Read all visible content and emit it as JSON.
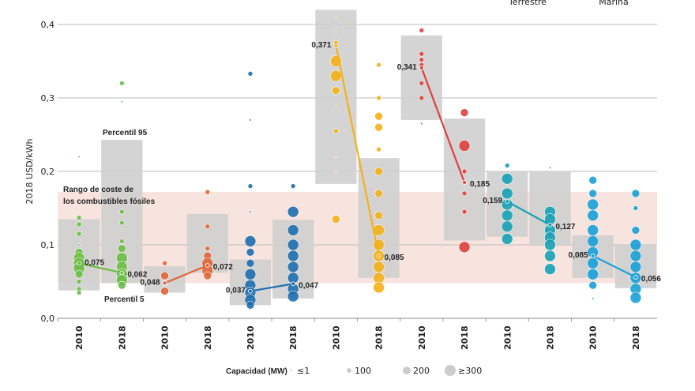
{
  "chart_data": {
    "type": "scatter",
    "ylabel": "2018 USD/kWh",
    "ylim": [
      0,
      0.4
    ],
    "yticks": [
      "0,0",
      "0,1",
      "0,2",
      "0,3",
      "0,4"
    ],
    "grid": true,
    "top_labels": [
      "Terrestre",
      "Marina"
    ],
    "fossil_range": {
      "label_lines": [
        "Rango de coste de",
        "los combustibles fósiles"
      ],
      "low": 0.048,
      "high": 0.172,
      "color": "#f8e4de"
    },
    "annotations": {
      "p95": "Percentil 95",
      "p5": "Percentil 5"
    },
    "legend": {
      "title": "Capacidad (MW)",
      "items": [
        "≤1",
        "100",
        "200",
        "≥300"
      ],
      "placement": "bottom"
    },
    "groups": [
      {
        "color": "#6cbd45",
        "years": [
          {
            "year": "2010",
            "avg": 0.075,
            "avg_label": "0,075",
            "p5": 0.038,
            "p95": 0.135,
            "points": [
              [
                0.22,
                1
              ],
              [
                0.137,
                100
              ],
              [
                0.128,
                100
              ],
              [
                0.115,
                100
              ],
              [
                0.1,
                1
              ],
              [
                0.09,
                200
              ],
              [
                0.082,
                300
              ],
              [
                0.075,
                300
              ],
              [
                0.068,
                300
              ],
              [
                0.06,
                200
              ],
              [
                0.05,
                100
              ],
              [
                0.04,
                100
              ],
              [
                0.035,
                100
              ]
            ]
          },
          {
            "year": "2018",
            "avg": 0.062,
            "avg_label": "0,062",
            "p5": 0.048,
            "p95": 0.243,
            "points": [
              [
                0.32,
                100
              ],
              [
                0.295,
                1
              ],
              [
                0.145,
                100
              ],
              [
                0.13,
                100
              ],
              [
                0.12,
                1
              ],
              [
                0.105,
                100
              ],
              [
                0.095,
                200
              ],
              [
                0.082,
                300
              ],
              [
                0.07,
                300
              ],
              [
                0.06,
                300
              ],
              [
                0.052,
                300
              ],
              [
                0.045,
                200
              ]
            ]
          }
        ]
      },
      {
        "color": "#e0663a",
        "years": [
          {
            "year": "2010",
            "avg": 0.048,
            "avg_label": "0,048",
            "p5": 0.035,
            "p95": 0.071,
            "points": [
              [
                0.075,
                100
              ],
              [
                0.058,
                200
              ],
              [
                0.048,
                100
              ],
              [
                0.037,
                200
              ]
            ]
          },
          {
            "year": "2018",
            "avg": 0.072,
            "avg_label": "0,072",
            "p5": 0.062,
            "p95": 0.142,
            "points": [
              [
                0.172,
                100
              ],
              [
                0.125,
                100
              ],
              [
                0.095,
                100
              ],
              [
                0.085,
                200
              ],
              [
                0.075,
                300
              ],
              [
                0.065,
                300
              ],
              [
                0.058,
                200
              ]
            ]
          }
        ]
      },
      {
        "color": "#1f6fae",
        "years": [
          {
            "year": "2010",
            "avg": 0.037,
            "avg_label": "0,037",
            "p5": 0.018,
            "p95": 0.08,
            "points": [
              [
                0.333,
                100
              ],
              [
                0.27,
                1
              ],
              [
                0.18,
                100
              ],
              [
                0.145,
                1
              ],
              [
                0.105,
                300
              ],
              [
                0.09,
                200
              ],
              [
                0.075,
                200
              ],
              [
                0.06,
                300
              ],
              [
                0.045,
                300
              ],
              [
                0.035,
                300
              ],
              [
                0.025,
                300
              ],
              [
                0.018,
                200
              ]
            ]
          },
          {
            "year": "2018",
            "avg": 0.047,
            "avg_label": "0,047",
            "p5": 0.027,
            "p95": 0.134,
            "points": [
              [
                0.18,
                100
              ],
              [
                0.145,
                300
              ],
              [
                0.12,
                300
              ],
              [
                0.1,
                300
              ],
              [
                0.085,
                300
              ],
              [
                0.07,
                300
              ],
              [
                0.055,
                300
              ],
              [
                0.04,
                300
              ],
              [
                0.03,
                300
              ]
            ]
          }
        ]
      },
      {
        "color": "#f4b11a",
        "years": [
          {
            "year": "2010",
            "avg": 0.371,
            "avg_label": "0,371",
            "p5": 0.183,
            "p95": 0.42,
            "points": [
              [
                0.41,
                1
              ],
              [
                0.39,
                1
              ],
              [
                0.375,
                100
              ],
              [
                0.35,
                300
              ],
              [
                0.33,
                300
              ],
              [
                0.31,
                200
              ],
              [
                0.29,
                1
              ],
              [
                0.255,
                100
              ],
              [
                0.22,
                1
              ],
              [
                0.2,
                1
              ],
              [
                0.135,
                200
              ]
            ]
          },
          {
            "year": "2018",
            "avg": 0.085,
            "avg_label": "0,085",
            "p5": 0.055,
            "p95": 0.218,
            "points": [
              [
                0.345,
                100
              ],
              [
                0.3,
                100
              ],
              [
                0.275,
                200
              ],
              [
                0.26,
                200
              ],
              [
                0.23,
                100
              ],
              [
                0.2,
                200
              ],
              [
                0.17,
                200
              ],
              [
                0.14,
                200
              ],
              [
                0.12,
                300
              ],
              [
                0.1,
                300
              ],
              [
                0.085,
                300
              ],
              [
                0.07,
                300
              ],
              [
                0.055,
                300
              ],
              [
                0.042,
                300
              ]
            ]
          }
        ]
      },
      {
        "color": "#e0403f",
        "years": [
          {
            "year": "2010",
            "avg": 0.341,
            "avg_label": "0,341",
            "p5": 0.27,
            "p95": 0.385,
            "points": [
              [
                0.392,
                100
              ],
              [
                0.36,
                100
              ],
              [
                0.352,
                100
              ],
              [
                0.345,
                100
              ],
              [
                0.32,
                100
              ],
              [
                0.3,
                100
              ],
              [
                0.265,
                1
              ]
            ]
          },
          {
            "year": "2018",
            "avg": 0.185,
            "avg_label": "0,185",
            "p5": 0.106,
            "p95": 0.272,
            "points": [
              [
                0.28,
                200
              ],
              [
                0.235,
                300
              ],
              [
                0.2,
                100
              ],
              [
                0.17,
                100
              ],
              [
                0.145,
                100
              ],
              [
                0.097,
                300
              ]
            ]
          }
        ]
      },
      {
        "color": "#17a2b5",
        "years": [
          {
            "year": "2010",
            "avg": 0.159,
            "avg_label": "0,159",
            "p5": 0.111,
            "p95": 0.2,
            "points": [
              [
                0.208,
                100
              ],
              [
                0.19,
                300
              ],
              [
                0.17,
                300
              ],
              [
                0.155,
                300
              ],
              [
                0.14,
                300
              ],
              [
                0.125,
                300
              ],
              [
                0.108,
                300
              ]
            ]
          },
          {
            "year": "2018",
            "avg": 0.127,
            "avg_label": "0,127",
            "p5": 0.099,
            "p95": 0.2,
            "points": [
              [
                0.205,
                1
              ],
              [
                0.145,
                300
              ],
              [
                0.135,
                300
              ],
              [
                0.12,
                300
              ],
              [
                0.11,
                300
              ],
              [
                0.1,
                300
              ],
              [
                0.085,
                300
              ],
              [
                0.067,
                300
              ]
            ]
          }
        ]
      },
      {
        "color": "#1aa0d8",
        "years": [
          {
            "year": "2010",
            "avg": 0.085,
            "avg_label": "0,085",
            "p5": 0.055,
            "p95": 0.113,
            "points": [
              [
                0.188,
                200
              ],
              [
                0.17,
                200
              ],
              [
                0.155,
                300
              ],
              [
                0.14,
                300
              ],
              [
                0.12,
                300
              ],
              [
                0.105,
                300
              ],
              [
                0.09,
                300
              ],
              [
                0.075,
                300
              ],
              [
                0.06,
                300
              ],
              [
                0.045,
                200
              ],
              [
                0.027,
                1
              ]
            ]
          },
          {
            "year": "2018",
            "avg": 0.056,
            "avg_label": "0,056",
            "p5": 0.041,
            "p95": 0.1,
            "points": [
              [
                0.17,
                200
              ],
              [
                0.15,
                100
              ],
              [
                0.12,
                200
              ],
              [
                0.1,
                300
              ],
              [
                0.085,
                300
              ],
              [
                0.07,
                300
              ],
              [
                0.055,
                300
              ],
              [
                0.04,
                300
              ],
              [
                0.028,
                300
              ]
            ]
          }
        ]
      }
    ]
  }
}
